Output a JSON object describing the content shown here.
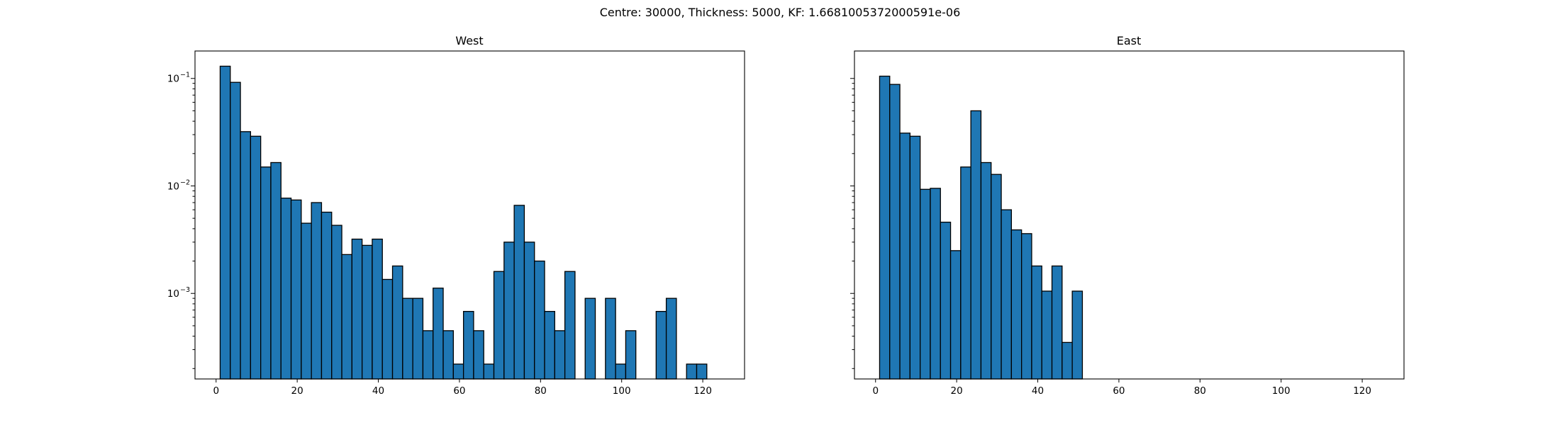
{
  "figure": {
    "suptitle": "Centre: 30000, Thickness: 5000, KF: 1.6681005372000591e-06"
  },
  "chart_data": [
    {
      "type": "bar",
      "title": "West",
      "color": "#1f77b4",
      "edgecolor": "#000000",
      "xlim": [
        -5.2,
        130.3
      ],
      "ylim": [
        0.00016,
        0.18
      ],
      "yscale": "log",
      "bin_width": 2.5,
      "x_start": 1,
      "xticks": [
        0,
        20,
        40,
        60,
        80,
        100,
        120
      ],
      "yticks": [
        {
          "value": 0.001,
          "base": "10",
          "exp": "−3"
        },
        {
          "value": 0.01,
          "base": "10",
          "exp": "−2"
        },
        {
          "value": 0.1,
          "base": "10",
          "exp": "−1"
        }
      ],
      "values": [
        0.13,
        0.092,
        0.032,
        0.029,
        0.015,
        0.0165,
        0.0077,
        0.0074,
        0.0045,
        0.007,
        0.0057,
        0.0043,
        0.0023,
        0.0032,
        0.0028,
        0.0032,
        0.00135,
        0.0018,
        0.0009,
        0.0009,
        0.00045,
        0.00112,
        0.00045,
        0.00022,
        0.00068,
        0.00045,
        0.00022,
        0.0016,
        0.003,
        0.0066,
        0.003,
        0.002,
        0.00068,
        0.00045,
        0.0016,
        0,
        0.0009,
        0,
        0.0009,
        0.00022,
        0.00045,
        0,
        0,
        0.00068,
        0.0009,
        0,
        0.00022,
        0.00022
      ]
    },
    {
      "type": "bar",
      "title": "East",
      "color": "#1f77b4",
      "edgecolor": "#000000",
      "xlim": [
        -5.2,
        130.3
      ],
      "ylim": [
        0.00016,
        0.18
      ],
      "yscale": "log",
      "bin_width": 2.5,
      "x_start": 1,
      "xticks": [
        0,
        20,
        40,
        60,
        80,
        100,
        120
      ],
      "yticks": [],
      "values": [
        0.105,
        0.088,
        0.031,
        0.029,
        0.0093,
        0.0095,
        0.0046,
        0.0025,
        0.015,
        0.05,
        0.0165,
        0.0128,
        0.006,
        0.0039,
        0.0036,
        0.0018,
        0.00105,
        0.0018,
        0.00035,
        0.00105
      ]
    }
  ]
}
